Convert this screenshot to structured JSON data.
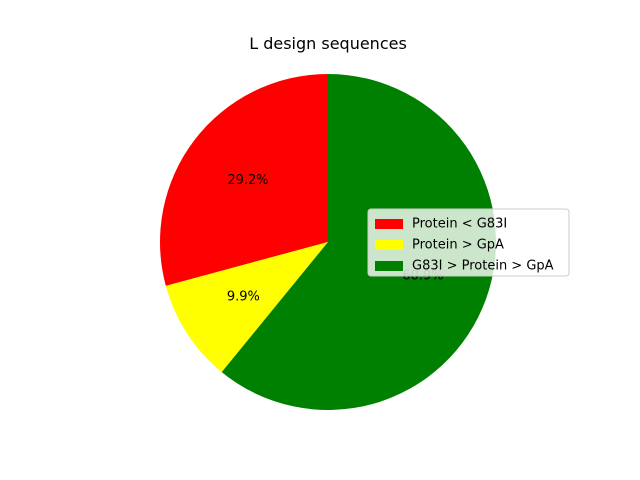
{
  "chart_data": {
    "type": "pie",
    "title": "L design sequences",
    "slices": [
      {
        "label": "Protein < G83I",
        "value": 29.2,
        "display": "29.2%",
        "color": "#ff0000"
      },
      {
        "label": "Protein > GpA",
        "value": 9.9,
        "display": "9.9%",
        "color": "#ffff00"
      },
      {
        "label": "G83I > Protein > GpA",
        "value": 60.9,
        "display": "60.9%",
        "color": "#008000"
      }
    ],
    "start_angle": 90,
    "direction": "counterclockwise",
    "legend_position": "center-right"
  }
}
